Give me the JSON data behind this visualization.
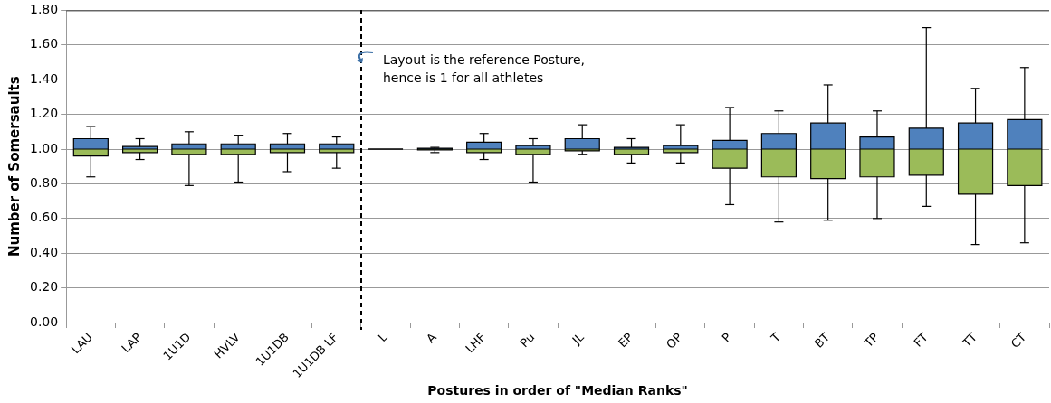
{
  "chart_data": {
    "type": "box",
    "xlabel": "Postures in order of \"Median Ranks\"",
    "ylabel": "Number of Somersaults",
    "categories": [
      "LAU",
      "LAP",
      "1U1D",
      "HVLV",
      "1U1DB",
      "1U1DB LF",
      "L",
      "A",
      "LHF",
      "Pu",
      "JL",
      "EP",
      "OP",
      "P",
      "T",
      "BT",
      "TP",
      "FT",
      "TT",
      "CT"
    ],
    "boxes": [
      {
        "low": 0.84,
        "q1": 0.96,
        "median": 1.0,
        "q3": 1.06,
        "high": 1.13
      },
      {
        "low": 0.94,
        "q1": 0.98,
        "median": 1.0,
        "q3": 1.015,
        "high": 1.06
      },
      {
        "low": 0.79,
        "q1": 0.97,
        "median": 1.0,
        "q3": 1.03,
        "high": 1.1
      },
      {
        "low": 0.81,
        "q1": 0.97,
        "median": 1.0,
        "q3": 1.03,
        "high": 1.08
      },
      {
        "low": 0.87,
        "q1": 0.98,
        "median": 1.0,
        "q3": 1.03,
        "high": 1.09
      },
      {
        "low": 0.89,
        "q1": 0.98,
        "median": 1.0,
        "q3": 1.03,
        "high": 1.07
      },
      {
        "low": 1.0,
        "q1": 1.0,
        "median": 1.0,
        "q3": 1.0,
        "high": 1.0
      },
      {
        "low": 0.98,
        "q1": 0.995,
        "median": 1.0,
        "q3": 1.005,
        "high": 1.01
      },
      {
        "low": 0.94,
        "q1": 0.98,
        "median": 1.0,
        "q3": 1.04,
        "high": 1.09
      },
      {
        "low": 0.81,
        "q1": 0.97,
        "median": 1.0,
        "q3": 1.02,
        "high": 1.06
      },
      {
        "low": 0.97,
        "q1": 0.99,
        "median": 1.0,
        "q3": 1.06,
        "high": 1.14
      },
      {
        "low": 0.92,
        "q1": 0.97,
        "median": 1.0,
        "q3": 1.01,
        "high": 1.06
      },
      {
        "low": 0.92,
        "q1": 0.98,
        "median": 1.0,
        "q3": 1.02,
        "high": 1.14
      },
      {
        "low": 0.68,
        "q1": 0.89,
        "median": 1.0,
        "q3": 1.05,
        "high": 1.24
      },
      {
        "low": 0.58,
        "q1": 0.84,
        "median": 1.0,
        "q3": 1.09,
        "high": 1.22
      },
      {
        "low": 0.59,
        "q1": 0.83,
        "median": 1.0,
        "q3": 1.15,
        "high": 1.37
      },
      {
        "low": 0.6,
        "q1": 0.84,
        "median": 1.0,
        "q3": 1.07,
        "high": 1.22
      },
      {
        "low": 0.67,
        "q1": 0.85,
        "median": 1.0,
        "q3": 1.12,
        "high": 1.7
      },
      {
        "low": 0.45,
        "q1": 0.74,
        "median": 1.0,
        "q3": 1.15,
        "high": 1.35
      },
      {
        "low": 0.46,
        "q1": 0.79,
        "median": 1.0,
        "q3": 1.17,
        "high": 1.47
      }
    ],
    "ylim": [
      0,
      1.8
    ],
    "yticks": [
      {
        "value": 0,
        "label": "0.00"
      },
      {
        "value": 0.2,
        "label": "0.20"
      },
      {
        "value": 0.4,
        "label": "0.40"
      },
      {
        "value": 0.6,
        "label": "0.60"
      },
      {
        "value": 0.8,
        "label": "0.80"
      },
      {
        "value": 1.0,
        "label": "1.00"
      },
      {
        "value": 1.2,
        "label": "1.20"
      },
      {
        "value": 1.4,
        "label": "1.40"
      },
      {
        "value": 1.6,
        "label": "1.60"
      },
      {
        "value": 1.8,
        "label": "1.80"
      }
    ],
    "grid": "y",
    "annotations": [
      "Layout is the reference Posture,\nhence is 1 for all athletes"
    ]
  }
}
